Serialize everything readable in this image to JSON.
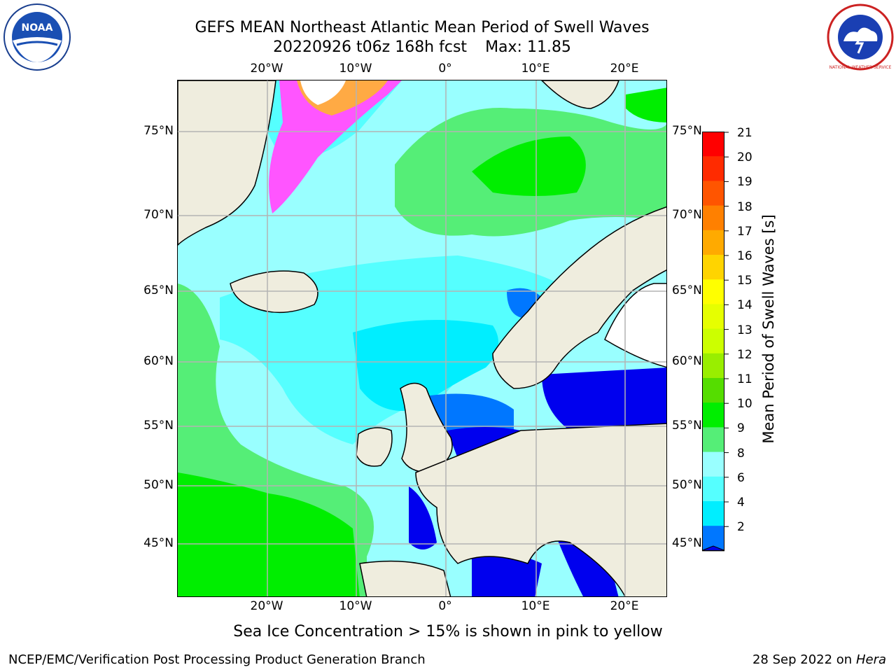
{
  "header": {
    "title_line1": "GEFS MEAN Northeast Atlantic Mean Period of Swell Waves",
    "title_line2": "20220926 t06z 168h fcst",
    "max_label": "Max: 11.85"
  },
  "map": {
    "lon_labels_top": [
      "20°W",
      "10°W",
      "0°",
      "10°E",
      "20°E"
    ],
    "lon_labels_bottom": [
      "20°W",
      "10°W",
      "0°",
      "10°E",
      "20°E"
    ],
    "lat_labels_left": [
      "75°N",
      "70°N",
      "65°N",
      "60°N",
      "55°N",
      "50°N",
      "45°N"
    ],
    "lat_labels_right": [
      "75°N",
      "70°N",
      "65°N",
      "60°N",
      "55°N",
      "50°N",
      "45°N"
    ],
    "extent": {
      "lon_min": -30,
      "lon_max": 25,
      "lat_min": 41,
      "lat_max": 78
    },
    "colors": {
      "land": "#efedde",
      "grid": "#b3b3b3",
      "coast": "#000000"
    }
  },
  "colorbar": {
    "label": "Mean Period of Swell Waves [s]",
    "ticks": [
      "21",
      "20",
      "19",
      "18",
      "17",
      "16",
      "15",
      "14",
      "13",
      "12",
      "11",
      "10",
      "9",
      "8",
      "6",
      "4",
      "2"
    ],
    "colors": [
      "#ff0000",
      "#ff2b00",
      "#ff5500",
      "#ff8000",
      "#ffaa00",
      "#ffd400",
      "#ffff00",
      "#e6ff00",
      "#ccff00",
      "#99ee00",
      "#55dd00",
      "#00ee00",
      "#55ee77",
      "#99ffff",
      "#55ffff",
      "#00eeff",
      "#0077ff"
    ],
    "extend_color": "#0000ee"
  },
  "note": "Sea Ice Concentration > 15% is shown in pink to yellow",
  "footer": {
    "left": "NCEP/EMC/Verification Post Processing Product Generation Branch",
    "date": "28 Sep 2022 on",
    "machine": "Hera"
  },
  "logos": {
    "noaa_text": "NOAA",
    "nws_text": "NATIONAL WEATHER SERVICE"
  }
}
